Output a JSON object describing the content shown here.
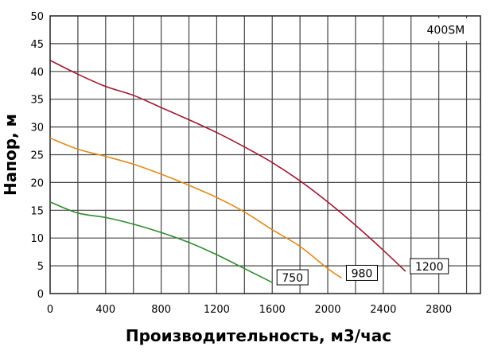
{
  "chart_data": {
    "type": "line",
    "xlabel": "Производительность, м3/час",
    "ylabel": "Напор, м",
    "model_label": "400SM",
    "xlim": [
      0,
      3100
    ],
    "ylim": [
      0,
      50
    ],
    "x_ticks": [
      0,
      400,
      800,
      1200,
      1600,
      2000,
      2400,
      2800
    ],
    "y_ticks": [
      0,
      5,
      10,
      15,
      20,
      25,
      30,
      35,
      40,
      45,
      50
    ],
    "grid": true,
    "series": [
      {
        "name": "750",
        "color": "#2e8b2e",
        "x": [
          0,
          200,
          400,
          600,
          800,
          1000,
          1200,
          1400,
          1600
        ],
        "y": [
          16.5,
          14.5,
          13.7,
          12.5,
          11.0,
          9.2,
          7.0,
          4.5,
          2.0
        ]
      },
      {
        "name": "980",
        "color": "#e08a1a",
        "x": [
          0,
          200,
          400,
          600,
          800,
          1000,
          1200,
          1400,
          1600,
          1800,
          2000,
          2100
        ],
        "y": [
          28.0,
          26.0,
          24.7,
          23.3,
          21.5,
          19.5,
          17.3,
          14.7,
          11.5,
          8.5,
          4.5,
          2.8
        ]
      },
      {
        "name": "1200",
        "color": "#a01830",
        "x": [
          0,
          200,
          400,
          600,
          800,
          1000,
          1200,
          1400,
          1600,
          1800,
          2000,
          2200,
          2400,
          2560
        ],
        "y": [
          42.0,
          39.5,
          37.3,
          35.7,
          33.5,
          31.3,
          29.0,
          26.4,
          23.6,
          20.3,
          16.5,
          12.3,
          7.8,
          4.0
        ]
      }
    ]
  }
}
